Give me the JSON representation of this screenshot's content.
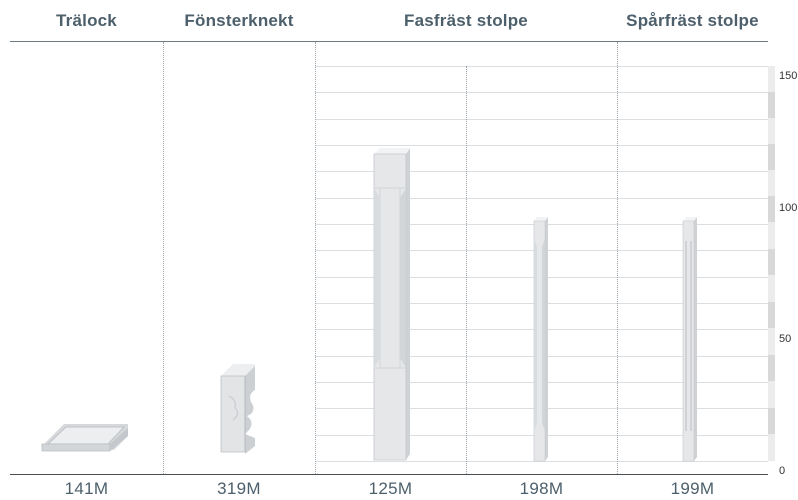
{
  "headers": [
    {
      "label": "Trälock"
    },
    {
      "label": "Fönsterknekt"
    },
    {
      "label": "Fasfräst stolpe"
    },
    {
      "label": "Spårfräst stolpe"
    }
  ],
  "scale": {
    "ticks": [
      {
        "label": "150",
        "value": 150
      },
      {
        "label": "100",
        "value": 100
      },
      {
        "label": "50",
        "value": 50
      },
      {
        "label": "0",
        "value": 0
      }
    ]
  },
  "products": [
    {
      "code": "141M",
      "category": "Trälock",
      "icon": "wood-lid-icon"
    },
    {
      "code": "319M",
      "category": "Fönsterknekt",
      "icon": "window-bracket-icon"
    },
    {
      "code": "125M",
      "category": "Fasfräst stolpe",
      "icon": "chamfered-post-icon"
    },
    {
      "code": "198M",
      "category": "Fasfräst stolpe",
      "icon": "chamfered-post-icon"
    },
    {
      "code": "199M",
      "category": "Spårfräst stolpe",
      "icon": "grooved-post-icon"
    }
  ],
  "colors": {
    "header_text": "#4c5f6b",
    "product_fill": "#e6e7e9",
    "product_shade": "#cfd2d5",
    "product_edge": "#b9bdc1"
  }
}
